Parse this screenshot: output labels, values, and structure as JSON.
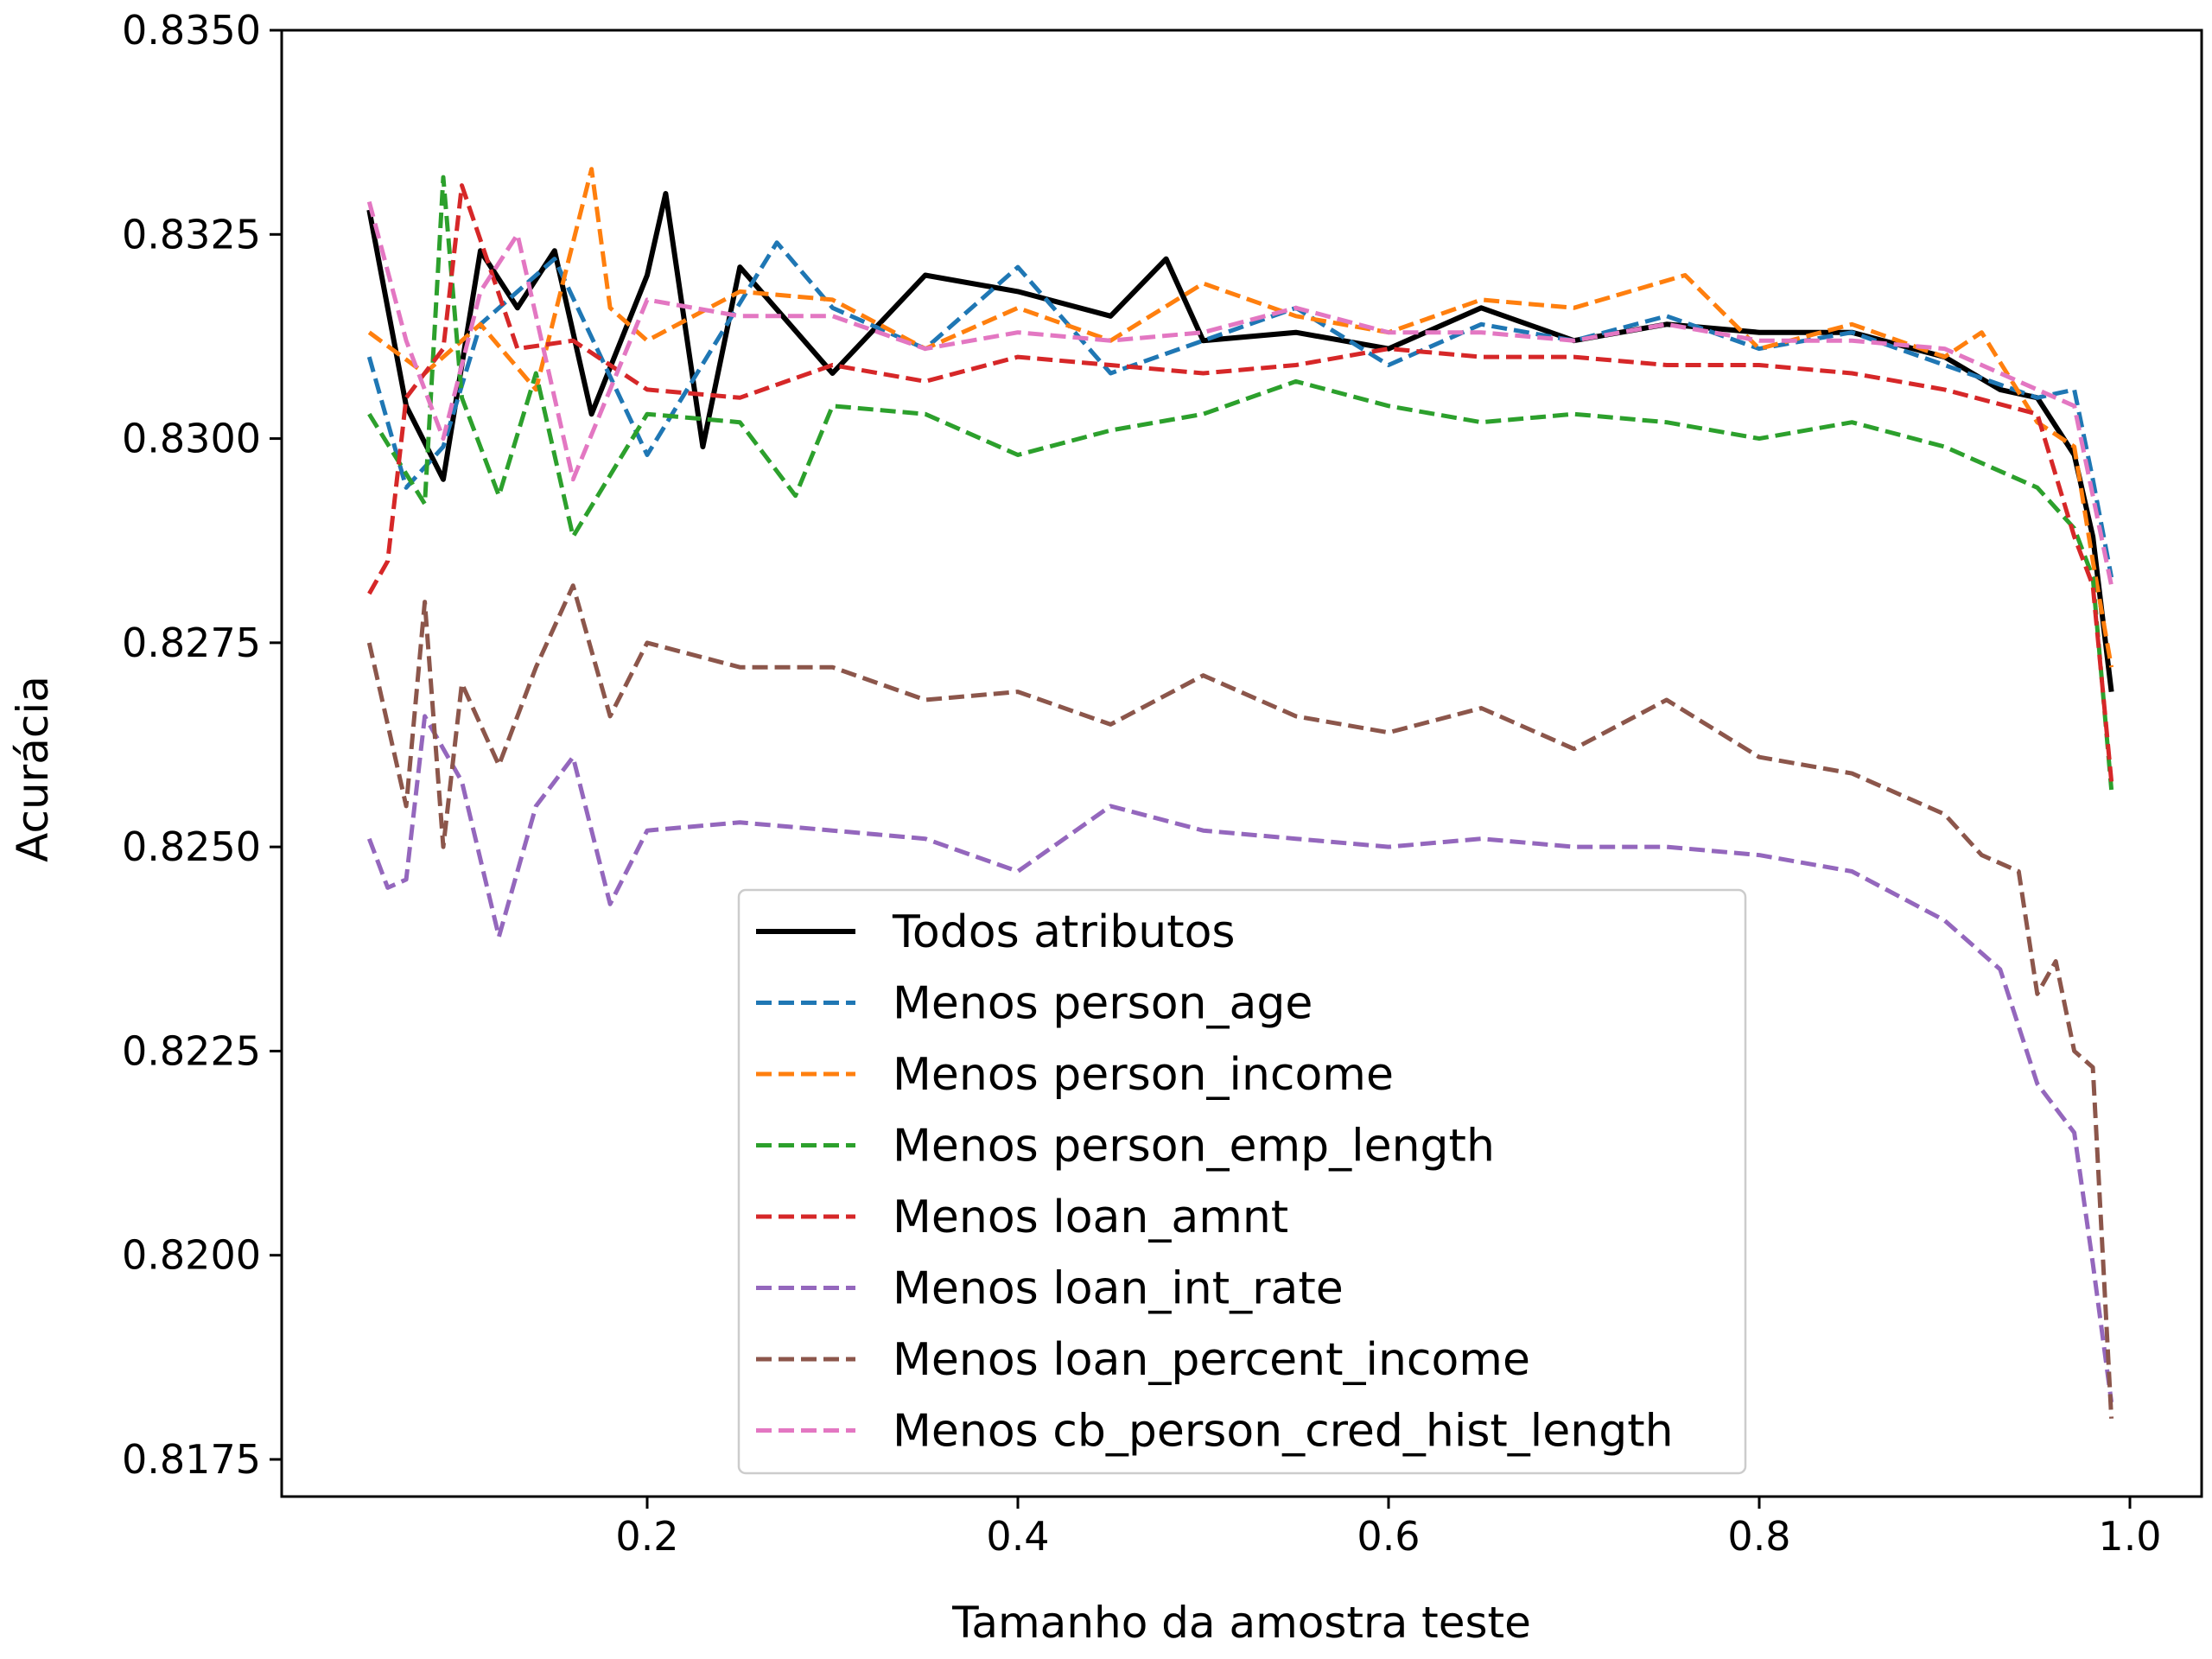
{
  "chart_data": {
    "type": "line",
    "xlabel": "Tamanho da amostra teste",
    "ylabel": "Acurácia",
    "xlim": [
      0.0,
      1.0
    ],
    "ylim": [
      0.8175,
      0.835
    ],
    "x_ticks": [
      0.2,
      0.4,
      0.6,
      0.8,
      1.0
    ],
    "x_tick_labels": [
      "0.2",
      "0.4",
      "0.6",
      "0.8",
      "1.0"
    ],
    "y_ticks": [
      0.8175,
      0.82,
      0.8225,
      0.825,
      0.8275,
      0.83,
      0.8325,
      0.835
    ],
    "y_tick_labels": [
      "0.8175",
      "0.8200",
      "0.8225",
      "0.8250",
      "0.8275",
      "0.8300",
      "0.8325",
      "0.8350"
    ],
    "grid": false,
    "legend_position": "lower-center",
    "series": [
      {
        "name": "Todos atributos",
        "color": "#000000",
        "style": "solid",
        "x": [
          0.05,
          0.07,
          0.09,
          0.11,
          0.13,
          0.15,
          0.17,
          0.2,
          0.21,
          0.23,
          0.25,
          0.3,
          0.35,
          0.4,
          0.45,
          0.48,
          0.5,
          0.55,
          0.6,
          0.65,
          0.7,
          0.75,
          0.8,
          0.85,
          0.9,
          0.93,
          0.95,
          0.97,
          0.98,
          0.99
        ],
        "y": [
          0.8328,
          0.8304,
          0.8295,
          0.8323,
          0.8316,
          0.8323,
          0.8303,
          0.832,
          0.833,
          0.8299,
          0.8321,
          0.8308,
          0.832,
          0.8318,
          0.8315,
          0.8322,
          0.8312,
          0.8313,
          0.8311,
          0.8316,
          0.8312,
          0.8314,
          0.8313,
          0.8313,
          0.831,
          0.8306,
          0.8305,
          0.8298,
          0.8288,
          0.8269
        ]
      },
      {
        "name": "Menos person_age",
        "color": "#1f77b4",
        "style": "dashed",
        "x": [
          0.05,
          0.07,
          0.09,
          0.11,
          0.15,
          0.2,
          0.27,
          0.3,
          0.35,
          0.4,
          0.45,
          0.5,
          0.55,
          0.6,
          0.65,
          0.7,
          0.75,
          0.8,
          0.85,
          0.9,
          0.95,
          0.97,
          0.98,
          0.99
        ],
        "y": [
          0.831,
          0.8294,
          0.8299,
          0.8314,
          0.8322,
          0.8298,
          0.8324,
          0.8316,
          0.8311,
          0.8321,
          0.8308,
          0.8312,
          0.8316,
          0.8309,
          0.8314,
          0.8312,
          0.8315,
          0.8311,
          0.8313,
          0.8309,
          0.8305,
          0.8306,
          0.8295,
          0.8283
        ]
      },
      {
        "name": "Menos person_income",
        "color": "#ff7f0e",
        "style": "dashed",
        "x": [
          0.05,
          0.08,
          0.11,
          0.14,
          0.17,
          0.18,
          0.2,
          0.25,
          0.3,
          0.35,
          0.4,
          0.45,
          0.5,
          0.55,
          0.6,
          0.65,
          0.7,
          0.76,
          0.8,
          0.85,
          0.9,
          0.92,
          0.95,
          0.97,
          0.98,
          0.99
        ],
        "y": [
          0.8313,
          0.8308,
          0.8314,
          0.8306,
          0.8333,
          0.8316,
          0.8312,
          0.8318,
          0.8317,
          0.8311,
          0.8316,
          0.8312,
          0.8319,
          0.8315,
          0.8313,
          0.8317,
          0.8316,
          0.832,
          0.8311,
          0.8314,
          0.831,
          0.8313,
          0.8302,
          0.8299,
          0.8285,
          0.8272
        ]
      },
      {
        "name": "Menos person_emp_length",
        "color": "#2ca02c",
        "style": "dashed",
        "x": [
          0.05,
          0.08,
          0.09,
          0.1,
          0.12,
          0.14,
          0.16,
          0.2,
          0.25,
          0.28,
          0.3,
          0.35,
          0.4,
          0.45,
          0.5,
          0.55,
          0.6,
          0.65,
          0.7,
          0.75,
          0.8,
          0.85,
          0.9,
          0.95,
          0.97,
          0.98,
          0.99
        ],
        "y": [
          0.8303,
          0.8292,
          0.8332,
          0.8305,
          0.8293,
          0.8308,
          0.8288,
          0.8303,
          0.8302,
          0.8293,
          0.8304,
          0.8303,
          0.8298,
          0.8301,
          0.8303,
          0.8307,
          0.8304,
          0.8302,
          0.8303,
          0.8302,
          0.83,
          0.8302,
          0.8299,
          0.8294,
          0.8289,
          0.8283,
          0.8257
        ]
      },
      {
        "name": "Menos loan_amnt",
        "color": "#d62728",
        "style": "dashed",
        "x": [
          0.05,
          0.06,
          0.07,
          0.09,
          0.1,
          0.13,
          0.16,
          0.2,
          0.25,
          0.3,
          0.35,
          0.4,
          0.45,
          0.5,
          0.55,
          0.6,
          0.65,
          0.7,
          0.75,
          0.8,
          0.85,
          0.9,
          0.95,
          0.97,
          0.98,
          0.99
        ],
        "y": [
          0.8281,
          0.8285,
          0.8305,
          0.8311,
          0.8331,
          0.8311,
          0.8312,
          0.8306,
          0.8305,
          0.8309,
          0.8307,
          0.831,
          0.8309,
          0.8308,
          0.8309,
          0.8311,
          0.831,
          0.831,
          0.8309,
          0.8309,
          0.8308,
          0.8306,
          0.8303,
          0.8288,
          0.8282,
          0.8258
        ]
      },
      {
        "name": "Menos loan_int_rate",
        "color": "#9467bd",
        "style": "dashed",
        "x": [
          0.05,
          0.06,
          0.07,
          0.08,
          0.1,
          0.12,
          0.14,
          0.16,
          0.18,
          0.2,
          0.25,
          0.3,
          0.35,
          0.4,
          0.45,
          0.5,
          0.55,
          0.6,
          0.65,
          0.7,
          0.75,
          0.8,
          0.85,
          0.9,
          0.93,
          0.95,
          0.97,
          0.98,
          0.99
        ],
        "y": [
          0.8251,
          0.8245,
          0.8246,
          0.8266,
          0.8258,
          0.8239,
          0.8255,
          0.8261,
          0.8243,
          0.8252,
          0.8253,
          0.8252,
          0.8251,
          0.8247,
          0.8255,
          0.8252,
          0.8251,
          0.825,
          0.8251,
          0.825,
          0.825,
          0.8249,
          0.8247,
          0.8241,
          0.8235,
          0.8221,
          0.8215,
          0.8199,
          0.8182
        ]
      },
      {
        "name": "Menos loan_percent_income",
        "color": "#8c564b",
        "style": "dashed",
        "x": [
          0.05,
          0.07,
          0.08,
          0.09,
          0.1,
          0.12,
          0.14,
          0.16,
          0.18,
          0.2,
          0.25,
          0.3,
          0.35,
          0.4,
          0.45,
          0.5,
          0.55,
          0.6,
          0.65,
          0.7,
          0.75,
          0.8,
          0.85,
          0.9,
          0.92,
          0.94,
          0.95,
          0.96,
          0.97,
          0.98,
          0.99
        ],
        "y": [
          0.8275,
          0.8255,
          0.828,
          0.825,
          0.827,
          0.826,
          0.8272,
          0.8282,
          0.8266,
          0.8275,
          0.8272,
          0.8272,
          0.8268,
          0.8269,
          0.8265,
          0.8271,
          0.8266,
          0.8264,
          0.8267,
          0.8262,
          0.8268,
          0.8261,
          0.8259,
          0.8254,
          0.8249,
          0.8247,
          0.8232,
          0.8236,
          0.8225,
          0.8223,
          0.818
        ]
      },
      {
        "name": "Menos cb_person_cred_hist_length",
        "color": "#e377c2",
        "style": "dashed",
        "x": [
          0.05,
          0.07,
          0.09,
          0.11,
          0.13,
          0.15,
          0.16,
          0.2,
          0.25,
          0.3,
          0.35,
          0.4,
          0.45,
          0.5,
          0.55,
          0.6,
          0.65,
          0.7,
          0.75,
          0.8,
          0.85,
          0.9,
          0.95,
          0.97,
          0.98,
          0.99
        ],
        "y": [
          0.8329,
          0.8312,
          0.83,
          0.8318,
          0.8325,
          0.8305,
          0.8295,
          0.8317,
          0.8315,
          0.8315,
          0.8311,
          0.8313,
          0.8312,
          0.8313,
          0.8316,
          0.8313,
          0.8313,
          0.8312,
          0.8314,
          0.8312,
          0.8312,
          0.8311,
          0.8306,
          0.8304,
          0.8293,
          0.8282
        ]
      }
    ]
  }
}
